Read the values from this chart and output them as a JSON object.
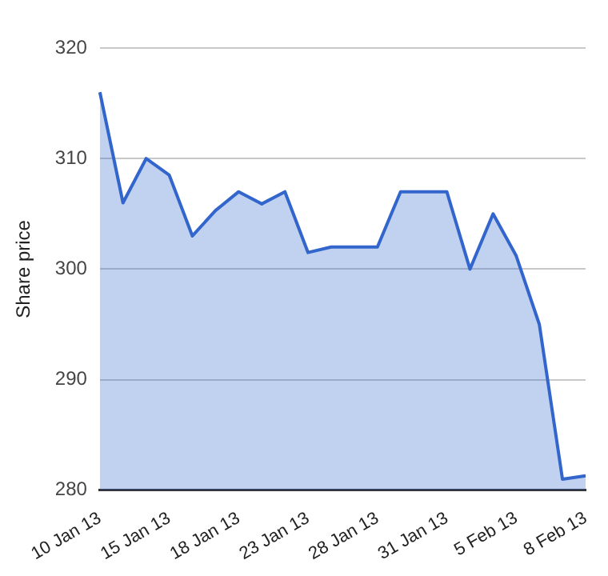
{
  "chart_data": {
    "type": "area",
    "ylabel": "Share price",
    "categories": [
      "10 Jan 13",
      null,
      null,
      "15 Jan 13",
      null,
      null,
      "18 Jan 13",
      null,
      null,
      "23 Jan 13",
      null,
      null,
      "28 Jan 13",
      null,
      null,
      "31 Jan 13",
      null,
      null,
      "5 Feb 13",
      null,
      null,
      "8 Feb 13"
    ],
    "series": [
      {
        "color": "#3366cc",
        "values": [
          316,
          306,
          310,
          308.5,
          303,
          305.3,
          307,
          305.9,
          307,
          301.5,
          302,
          302,
          302,
          307,
          307,
          307,
          300,
          305,
          301.2,
          295,
          281,
          281.3
        ]
      }
    ],
    "ylim": [
      280,
      320
    ],
    "yticks": [
      280,
      290,
      300,
      310,
      320
    ],
    "grid": "y",
    "legend": false,
    "marker": "none",
    "line_style": "solid"
  }
}
